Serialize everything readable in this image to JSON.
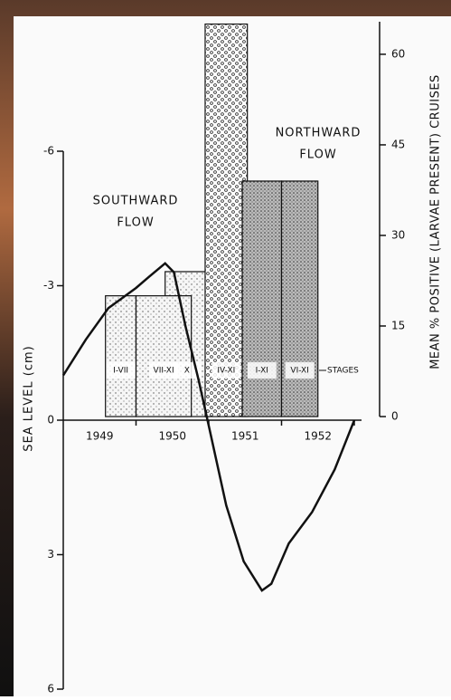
{
  "chart_data": {
    "type": "bar-line",
    "y_label": "SEA LEVEL (cm)",
    "y2_label": "MEAN % POSITIVE (LARVAE PRESENT) CRUISES",
    "categories": [
      "1949",
      "1950",
      "1951",
      "1952"
    ],
    "xlim": [
      1949,
      1953
    ],
    "xticks": [
      1950,
      1951,
      1952,
      1953
    ],
    "ylim": [
      -6,
      6
    ],
    "y_inverted": true,
    "yticks": [
      -6,
      -3,
      0,
      3,
      6
    ],
    "y2lim": [
      0,
      65
    ],
    "y2ticks": [
      0,
      15,
      30,
      45,
      60
    ],
    "bars": [
      {
        "label": "X",
        "x0": 1950.4,
        "x1": 1951.0,
        "value": 24,
        "pattern": "dots"
      },
      {
        "label": "I-VII",
        "x0": 1949.58,
        "x1": 1950.0,
        "value": 20,
        "pattern": "dots"
      },
      {
        "label": "VII-XI",
        "x0": 1950.0,
        "x1": 1950.76,
        "value": 20,
        "pattern": "dots"
      },
      {
        "label": "IV-XI",
        "x0": 1950.95,
        "x1": 1951.53,
        "value": 65,
        "pattern": "circles"
      },
      {
        "label": "I-XI",
        "x0": 1951.46,
        "x1": 1952.0,
        "value": 39,
        "pattern": "stipple"
      },
      {
        "label": "VI-XI",
        "x0": 1952.0,
        "x1": 1952.5,
        "value": 39,
        "pattern": "stipple"
      }
    ],
    "line": {
      "x": [
        1949.0,
        1949.31,
        1949.62,
        1950.0,
        1950.18,
        1950.4,
        1950.52,
        1950.68,
        1950.86,
        1951.01,
        1951.24,
        1951.48,
        1951.73,
        1951.86,
        1952.1,
        1952.42,
        1952.73,
        1953.0
      ],
      "values": [
        -1.0,
        -1.8,
        -2.5,
        -2.95,
        -3.2,
        -3.5,
        -3.3,
        -2.1,
        -0.9,
        0.2,
        1.9,
        3.15,
        3.8,
        3.65,
        2.75,
        2.05,
        1.1,
        0
      ],
      "color": "#111111"
    },
    "annotations": {
      "southward": [
        "SOUTHWARD",
        "FLOW"
      ],
      "northward": [
        "NORTHWARD",
        "FLOW"
      ],
      "stages": "STAGES"
    }
  }
}
